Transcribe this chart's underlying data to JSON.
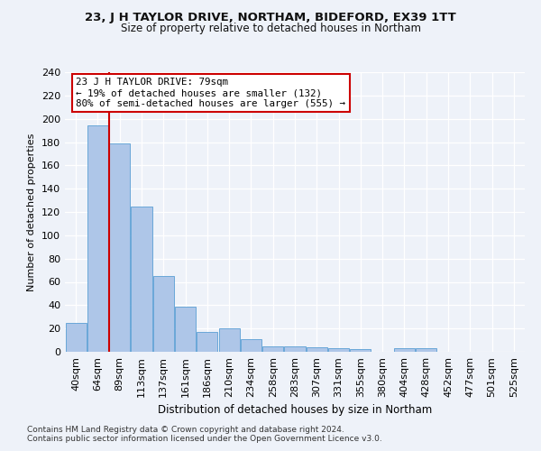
{
  "title1": "23, J H TAYLOR DRIVE, NORTHAM, BIDEFORD, EX39 1TT",
  "title2": "Size of property relative to detached houses in Northam",
  "xlabel": "Distribution of detached houses by size in Northam",
  "ylabel": "Number of detached properties",
  "categories": [
    "40sqm",
    "64sqm",
    "89sqm",
    "113sqm",
    "137sqm",
    "161sqm",
    "186sqm",
    "210sqm",
    "234sqm",
    "258sqm",
    "283sqm",
    "307sqm",
    "331sqm",
    "355sqm",
    "380sqm",
    "404sqm",
    "428sqm",
    "452sqm",
    "477sqm",
    "501sqm",
    "525sqm"
  ],
  "values": [
    25,
    194,
    179,
    125,
    65,
    39,
    17,
    20,
    11,
    5,
    5,
    4,
    3,
    2,
    0,
    3,
    3,
    0,
    0,
    0,
    0
  ],
  "bar_color": "#aec6e8",
  "bar_edge_color": "#5a9fd4",
  "red_line_x": 1.5,
  "annotation_text": "23 J H TAYLOR DRIVE: 79sqm\n← 19% of detached houses are smaller (132)\n80% of semi-detached houses are larger (555) →",
  "annotation_box_color": "#ffffff",
  "annotation_box_edge": "#cc0000",
  "property_line_color": "#cc0000",
  "background_color": "#eef2f9",
  "grid_color": "#ffffff",
  "footnote1": "Contains HM Land Registry data © Crown copyright and database right 2024.",
  "footnote2": "Contains public sector information licensed under the Open Government Licence v3.0.",
  "ylim": [
    0,
    240
  ],
  "yticks": [
    0,
    20,
    40,
    60,
    80,
    100,
    120,
    140,
    160,
    180,
    200,
    220,
    240
  ],
  "title1_fontsize": 9.5,
  "title2_fontsize": 8.5,
  "xlabel_fontsize": 8.5,
  "ylabel_fontsize": 8.0,
  "tick_fontsize": 8.0,
  "annot_fontsize": 7.8,
  "footnote_fontsize": 6.5
}
